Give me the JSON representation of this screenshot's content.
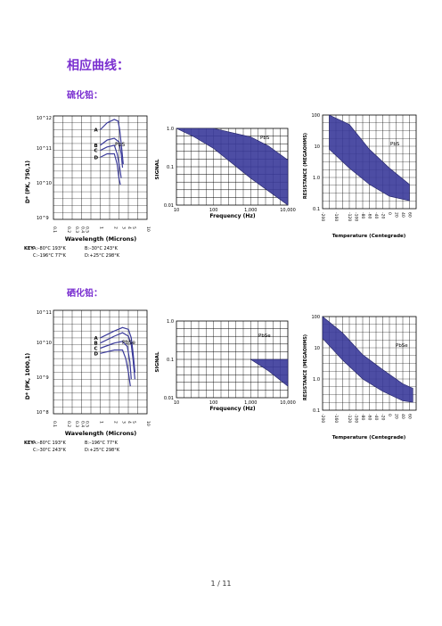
{
  "heading": "相应曲线：",
  "sections": [
    {
      "label": "硫化铅："
    },
    {
      "label": "硒化铅："
    }
  ],
  "colors": {
    "band": "#3a3a9a",
    "heading": "#7a2fd0"
  },
  "chart_data": [
    {
      "type": "line",
      "material": "PbS",
      "ylabel": "D* (PK, 750,1)",
      "xlabel": "Wavelength (Microns)",
      "y_ticks": [
        "10^12",
        "10^11",
        "10^10",
        "10^9"
      ],
      "x_ticks": [
        "0.1",
        "0.2",
        "0.3",
        "0.4",
        "0.5",
        "1",
        "2",
        "3",
        "4",
        "5",
        "10"
      ],
      "series_labels": [
        "A",
        "B",
        "C",
        "D"
      ],
      "key_title": "KEY",
      "key": [
        "A:–80°C 193°K",
        "B:–30°C 243°K",
        "C:–196°C 77°K",
        "D:+25°C 298°K"
      ],
      "series": [
        {
          "name": "A",
          "x": [
            1.0,
            1.4,
            2.0,
            2.4,
            2.6,
            2.9,
            3.1
          ],
          "y": [
            11.6,
            11.8,
            11.9,
            11.85,
            11.6,
            11.0,
            10.6
          ]
        },
        {
          "name": "B",
          "x": [
            1.0,
            1.4,
            2.0,
            2.5,
            2.8,
            3.0
          ],
          "y": [
            11.15,
            11.3,
            11.35,
            11.25,
            10.9,
            10.5
          ]
        },
        {
          "name": "C",
          "x": [
            1.0,
            1.4,
            2.0,
            2.3,
            2.6,
            2.8
          ],
          "y": [
            11.0,
            11.1,
            11.15,
            10.9,
            10.5,
            10.2
          ]
        },
        {
          "name": "D",
          "x": [
            1.0,
            1.4,
            2.0,
            2.3,
            2.5,
            2.7
          ],
          "y": [
            10.8,
            10.9,
            10.9,
            10.6,
            10.2,
            10.0
          ]
        }
      ]
    },
    {
      "type": "area",
      "material": "PbS",
      "ylabel": "SIGNAL",
      "xlabel": "Frequency (Hz)",
      "y_ticks": [
        "1.0",
        "0.1",
        "0.01"
      ],
      "x_ticks": [
        "10",
        "100",
        "1,000",
        "10,000"
      ],
      "upper": {
        "x": [
          10,
          100,
          1000,
          3000,
          10000
        ],
        "y": [
          1.0,
          1.0,
          0.6,
          0.35,
          0.15
        ]
      },
      "lower": {
        "x": [
          10,
          30,
          100,
          1000,
          10000
        ],
        "y": [
          1.0,
          0.6,
          0.3,
          0.05,
          0.01
        ]
      }
    },
    {
      "type": "area",
      "material": "PbS",
      "ylabel": "RESISTANCE (MEGAOHMS)",
      "xlabel": "Temperature (Centegrade)",
      "y_ticks": [
        "100",
        "10",
        "1.0",
        "0.1"
      ],
      "x_ticks": [
        "-200",
        "-160",
        "-120",
        "-100",
        "-80",
        "-60",
        "-40",
        "-20",
        "0",
        "20",
        "40",
        "60"
      ],
      "upper": {
        "x": [
          -180,
          -120,
          -60,
          0,
          60
        ],
        "y": [
          100,
          50,
          8,
          2,
          0.6
        ]
      },
      "lower": {
        "x": [
          -180,
          -120,
          -60,
          0,
          60
        ],
        "y": [
          8,
          2,
          0.6,
          0.25,
          0.18
        ]
      }
    },
    {
      "type": "line",
      "material": "PbSe",
      "ylabel": "D* (PK, 1000,1)",
      "xlabel": "Wavelength (Microns)",
      "y_ticks": [
        "10^11",
        "10^10",
        "10^9",
        "10^8"
      ],
      "x_ticks": [
        "0.1",
        "0.2",
        "0.3",
        "0.4",
        "0.5",
        "1",
        "2",
        "3",
        "4",
        "5",
        "10"
      ],
      "series_labels": [
        "A",
        "B",
        "C",
        "D"
      ],
      "key_title": "KEY",
      "key": [
        "A:–80°C 193°K",
        "B:–196°C 77°K",
        "C:–30°C 243°K",
        "D:+25°C 298°K"
      ],
      "series": [
        {
          "name": "A",
          "x": [
            1.0,
            2.0,
            3.0,
            4.0,
            4.6,
            5.0,
            5.5
          ],
          "y": [
            10.2,
            10.4,
            10.5,
            10.45,
            10.2,
            9.8,
            9.2
          ]
        },
        {
          "name": "B",
          "x": [
            1.0,
            2.0,
            3.0,
            4.0,
            4.6,
            5.0,
            5.5
          ],
          "y": [
            10.05,
            10.25,
            10.35,
            10.25,
            10.0,
            9.6,
            9.0
          ]
        },
        {
          "name": "C",
          "x": [
            1.0,
            2.0,
            3.0,
            3.8,
            4.3,
            4.6
          ],
          "y": [
            9.9,
            10.05,
            10.1,
            9.95,
            9.5,
            9.0
          ]
        },
        {
          "name": "D",
          "x": [
            1.0,
            2.0,
            3.0,
            3.5,
            4.0,
            4.4
          ],
          "y": [
            9.75,
            9.85,
            9.85,
            9.6,
            9.2,
            8.8
          ]
        }
      ]
    },
    {
      "type": "area",
      "material": "PbSe",
      "ylabel": "SIGNAL",
      "xlabel": "Frequency (Hz)",
      "y_ticks": [
        "1.0",
        "0.1",
        "0.01"
      ],
      "x_ticks": [
        "10",
        "100",
        "1,000",
        "10,000"
      ],
      "upper": {
        "x": [
          1000,
          3000,
          10000
        ],
        "y": [
          0.1,
          0.1,
          0.1
        ]
      },
      "lower": {
        "x": [
          1000,
          3000,
          10000
        ],
        "y": [
          0.1,
          0.05,
          0.02
        ]
      }
    },
    {
      "type": "area",
      "material": "PbSe",
      "ylabel": "RESISTANCE (MEGAOHMS)",
      "xlabel": "Temperature (Centegrade)",
      "y_ticks": [
        "100",
        "10",
        "1.0",
        "0.1"
      ],
      "x_ticks": [
        "-200",
        "-160",
        "-120",
        "-100",
        "-80",
        "-60",
        "-40",
        "-20",
        "0",
        "20",
        "40",
        "60"
      ],
      "upper": {
        "x": [
          -200,
          -140,
          -80,
          -20,
          40,
          70
        ],
        "y": [
          100,
          30,
          6,
          2,
          0.7,
          0.5
        ]
      },
      "lower": {
        "x": [
          -200,
          -140,
          -80,
          -20,
          40,
          70
        ],
        "y": [
          20,
          4,
          1,
          0.4,
          0.2,
          0.18
        ]
      }
    }
  ],
  "footer": "1  /  11"
}
